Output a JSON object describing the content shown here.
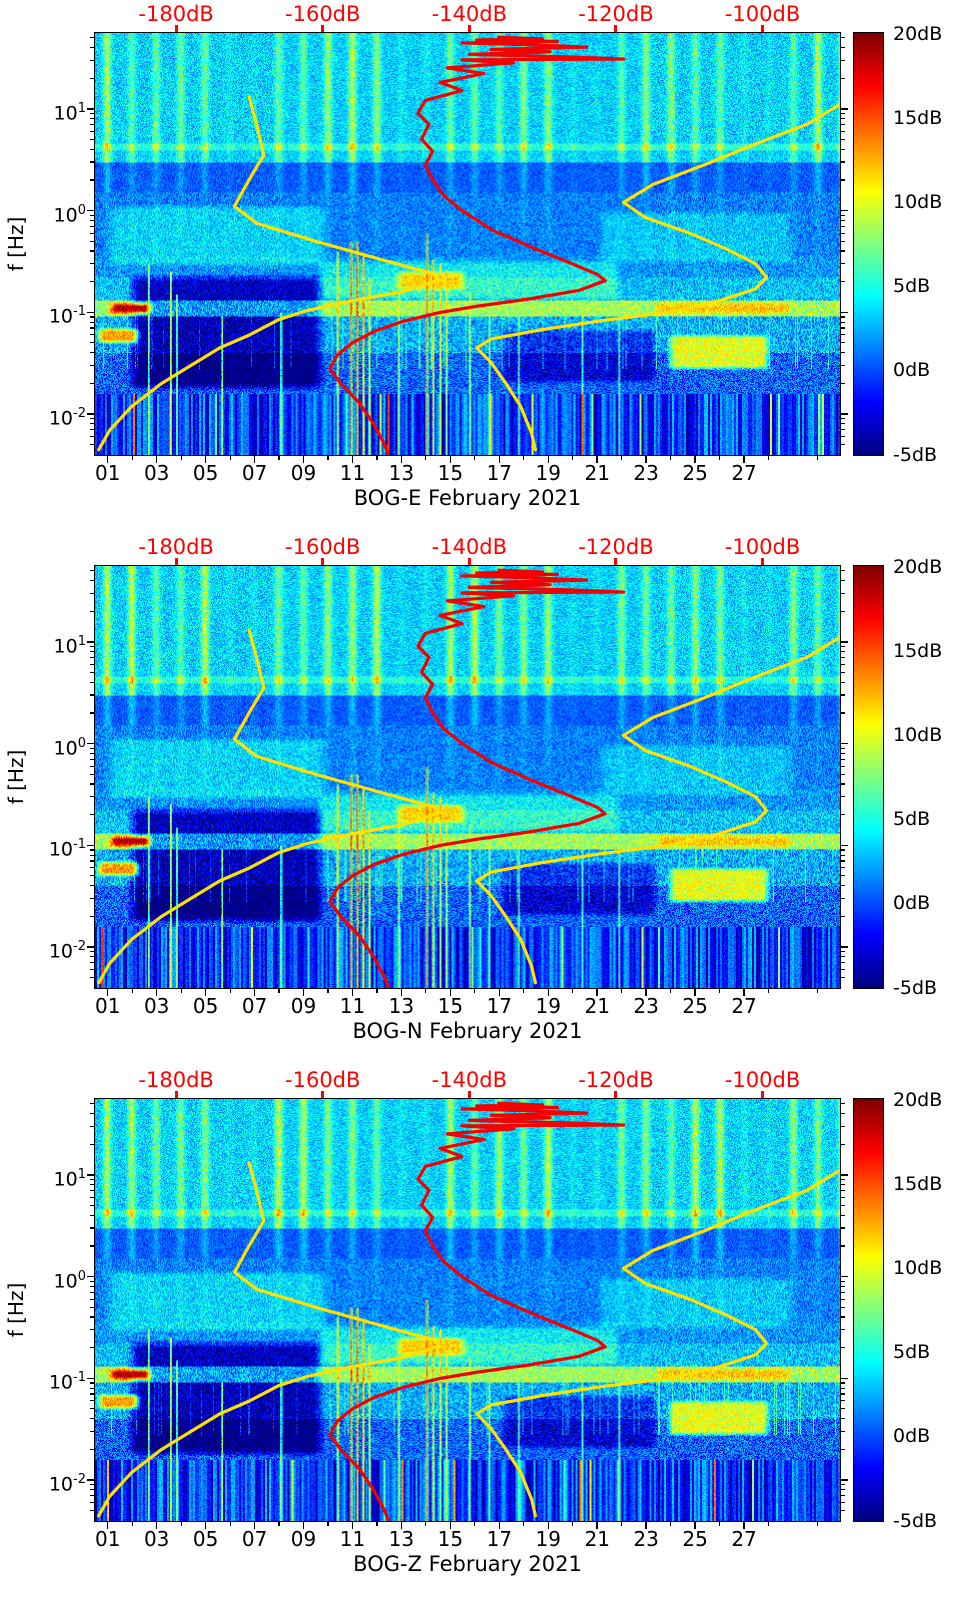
{
  "figure": {
    "kind": "seismic PSD spectrogram figure",
    "panel_count": 3
  },
  "chart_data": {
    "type": "heatmap",
    "panels": [
      {
        "title": "BOG-E February 2021",
        "seed": 1
      },
      {
        "title": "BOG-N February 2021",
        "seed": 2
      },
      {
        "title": "BOG-Z February 2021",
        "seed": 3
      }
    ],
    "y_axis": {
      "label": "f [Hz]",
      "scale": "log",
      "min": 0.004,
      "max": 55,
      "major_ticks": [
        {
          "value": 10,
          "base": "10",
          "exp": "1"
        },
        {
          "value": 1,
          "base": "10",
          "exp": "0"
        },
        {
          "value": 0.1,
          "base": "10",
          "exp": "-1"
        },
        {
          "value": 0.01,
          "base": "10",
          "exp": "-2"
        }
      ]
    },
    "x_axis": {
      "range_days": [
        0,
        30.4
      ],
      "tick_days": [
        0.5,
        2.5,
        4.5,
        6.5,
        8.5,
        10.5,
        12.5,
        14.5,
        16.5,
        18.5,
        20.5,
        22.5,
        24.5,
        26.5
      ],
      "tick_labels": [
        "01",
        "03",
        "05",
        "07",
        "09",
        "11",
        "13",
        "15",
        "17",
        "19",
        "21",
        "23",
        "25",
        "27"
      ],
      "minor_tick_days": [
        1.5,
        3.5,
        5.5,
        7.5,
        9.5,
        11.5,
        13.5,
        15.5,
        17.5,
        19.5,
        21.5,
        23.5,
        25.5,
        27.5,
        29.5
      ]
    },
    "top_axis": {
      "color": "#ff0000",
      "range_db": [
        -191,
        -89.5
      ],
      "ticks": [
        {
          "db": -180,
          "label": "-180dB"
        },
        {
          "db": -160,
          "label": "-160dB"
        },
        {
          "db": -140,
          "label": "-140dB"
        },
        {
          "db": -120,
          "label": "-120dB"
        },
        {
          "db": -100,
          "label": "-100dB"
        }
      ]
    },
    "colorbar": {
      "colormap": "jet",
      "min_db": -5,
      "max_db": 20,
      "ticks": [
        {
          "value": 20,
          "label": "20dB"
        },
        {
          "value": 15,
          "label": "15dB"
        },
        {
          "value": 10,
          "label": "10dB"
        },
        {
          "value": 5,
          "label": "5dB"
        },
        {
          "value": 0,
          "label": "0dB"
        },
        {
          "value": -5,
          "label": "-5dB"
        }
      ]
    },
    "overlays": [
      {
        "name": "low-noise-model",
        "color": "#ffe100",
        "width": 3.2,
        "points_db_hz": [
          [
            -170,
            13
          ],
          [
            -169,
            7
          ],
          [
            -168,
            3.5
          ],
          [
            -170,
            2
          ],
          [
            -172,
            1.1
          ],
          [
            -169,
            0.75
          ],
          [
            -161,
            0.5
          ],
          [
            -152,
            0.33
          ],
          [
            -145,
            0.24
          ],
          [
            -144,
            0.21
          ],
          [
            -149,
            0.16
          ],
          [
            -156,
            0.13
          ],
          [
            -162,
            0.105
          ],
          [
            -166,
            0.085
          ],
          [
            -170,
            0.06
          ],
          [
            -174,
            0.045
          ],
          [
            -178,
            0.03
          ],
          [
            -182,
            0.02
          ],
          [
            -186,
            0.012
          ],
          [
            -189,
            0.007
          ],
          [
            -190.5,
            0.0045
          ]
        ]
      },
      {
        "name": "high-noise-model",
        "color": "#ffe100",
        "width": 3.2,
        "points_db_hz": [
          [
            -89.5,
            11
          ],
          [
            -94,
            7
          ],
          [
            -101,
            4.5
          ],
          [
            -108,
            2.8
          ],
          [
            -115,
            1.8
          ],
          [
            -119,
            1.2
          ],
          [
            -116,
            0.85
          ],
          [
            -110,
            0.6
          ],
          [
            -105,
            0.42
          ],
          [
            -101,
            0.3
          ],
          [
            -99.5,
            0.22
          ],
          [
            -101,
            0.17
          ],
          [
            -106,
            0.13
          ],
          [
            -113,
            0.1
          ],
          [
            -122,
            0.083
          ],
          [
            -130,
            0.068
          ],
          [
            -137,
            0.055
          ],
          [
            -139,
            0.045
          ],
          [
            -137,
            0.032
          ],
          [
            -135,
            0.02
          ],
          [
            -133,
            0.012
          ],
          [
            -131.5,
            0.0065
          ],
          [
            -131,
            0.0045
          ]
        ]
      },
      {
        "name": "psd-mode",
        "color": "#f40000",
        "width": 3.2,
        "points_db_hz": [
          [
            -136,
            50
          ],
          [
            -130,
            48
          ],
          [
            -139,
            47
          ],
          [
            -128,
            45.5
          ],
          [
            -141,
            44
          ],
          [
            -131,
            42
          ],
          [
            -124,
            40
          ],
          [
            -137,
            38
          ],
          [
            -129,
            36
          ],
          [
            -140,
            34
          ],
          [
            -126,
            32
          ],
          [
            -119,
            30.5
          ],
          [
            -141,
            30
          ],
          [
            -134,
            28
          ],
          [
            -143,
            25
          ],
          [
            -138,
            22
          ],
          [
            -144,
            18
          ],
          [
            -141,
            15
          ],
          [
            -146,
            12
          ],
          [
            -147,
            9
          ],
          [
            -145.5,
            7
          ],
          [
            -146.5,
            5
          ],
          [
            -145,
            3.8
          ],
          [
            -146,
            2.8
          ],
          [
            -145,
            2
          ],
          [
            -143.5,
            1.4
          ],
          [
            -141,
            1
          ],
          [
            -137,
            0.65
          ],
          [
            -131,
            0.42
          ],
          [
            -126,
            0.3
          ],
          [
            -122.5,
            0.235
          ],
          [
            -121.5,
            0.205
          ],
          [
            -125,
            0.165
          ],
          [
            -132,
            0.135
          ],
          [
            -139,
            0.115
          ],
          [
            -144,
            0.1
          ],
          [
            -149,
            0.082
          ],
          [
            -153,
            0.065
          ],
          [
            -156,
            0.05
          ],
          [
            -158,
            0.038
          ],
          [
            -159,
            0.028
          ],
          [
            -157.5,
            0.02
          ],
          [
            -155,
            0.013
          ],
          [
            -153,
            0.008
          ],
          [
            -151.5,
            0.005
          ],
          [
            -151,
            0.004
          ]
        ]
      }
    ],
    "background": {
      "color_range_db": [
        -5,
        20
      ],
      "bands": [
        {
          "fmin": 3,
          "fmax": 55,
          "base": 3.2,
          "noise": 2.2,
          "stripe": 4.5
        },
        {
          "fmin": 1.5,
          "fmax": 3,
          "base": 0.3,
          "noise": 1.6,
          "stripe": 2.0
        },
        {
          "fmin": 0.35,
          "fmax": 1.5,
          "base": 1.2,
          "noise": 2.4,
          "stripe": 0.6
        },
        {
          "fmin": 0.22,
          "fmax": 0.35,
          "base": 1.8,
          "noise": 2.6,
          "stripe": 0
        },
        {
          "fmin": 0.13,
          "fmax": 0.22,
          "base": 3.0,
          "noise": 3.0,
          "stripe": 0
        },
        {
          "fmin": 0.09,
          "fmax": 0.13,
          "base": 8.5,
          "noise": 3.5,
          "stripe": 0
        },
        {
          "fmin": 0.04,
          "fmax": 0.09,
          "base": 2.5,
          "noise": 3.5,
          "stripe": 0
        },
        {
          "fmin": 0.016,
          "fmax": 0.04,
          "base": 0.5,
          "noise": 3.0,
          "stripe": 0
        },
        {
          "fmin": 0.004,
          "fmax": 0.016,
          "base": -0.5,
          "noise": 2.5,
          "stripe": 0
        }
      ],
      "hline": {
        "fmin": 3.9,
        "fmax": 4.6,
        "boost": 3.5
      },
      "weekend_day_indices": [
        5,
        6,
        12,
        13,
        19,
        20,
        26,
        27
      ],
      "quiet_region": {
        "day": [
          1.3,
          9.4
        ],
        "f": [
          0.017,
          0.24
        ],
        "delta": -6.5
      },
      "features": [
        {
          "day": [
            0.5,
            2.4
          ],
          "f": [
            0.093,
            0.128
          ],
          "db": 19
        },
        {
          "day": [
            0.0,
            1.9
          ],
          "f": [
            0.048,
            0.072
          ],
          "db": 13
        },
        {
          "day": [
            22.8,
            28.5
          ],
          "f": [
            0.092,
            0.13
          ],
          "db": 12
        },
        {
          "day": [
            23.3,
            27.6
          ],
          "f": [
            0.027,
            0.062
          ],
          "db": 10
        },
        {
          "day": [
            12.2,
            15.2
          ],
          "f": [
            0.16,
            0.26
          ],
          "db": 9
        },
        {
          "day": [
            9.0,
            21.5
          ],
          "f": [
            0.13,
            0.33
          ],
          "delta": 2.5
        },
        {
          "day": [
            0.5,
            9.5
          ],
          "f": [
            0.28,
            1.15
          ],
          "delta": 2.2
        },
        {
          "day": [
            20.5,
            28.5
          ],
          "f": [
            0.3,
            1.0
          ],
          "delta": 1.8
        },
        {
          "day": [
            16.5,
            23.0
          ],
          "f": [
            0.02,
            0.07
          ],
          "delta": -3.5
        }
      ],
      "transients": [
        {
          "day": 2.2,
          "fmax": 0.3,
          "db": 10
        },
        {
          "day": 3.1,
          "fmax": 0.25,
          "db": 12
        },
        {
          "day": 3.35,
          "fmax": 0.15,
          "db": 10
        },
        {
          "day": 5.2,
          "fmax": 0.09,
          "db": 9
        },
        {
          "day": 7.6,
          "fmax": 0.1,
          "db": 9
        },
        {
          "day": 9.9,
          "fmax": 0.4,
          "db": 13
        },
        {
          "day": 10.45,
          "fmax": 0.5,
          "db": 17
        },
        {
          "day": 10.7,
          "fmax": 0.5,
          "db": 18
        },
        {
          "day": 10.95,
          "fmax": 0.38,
          "db": 16
        },
        {
          "day": 11.2,
          "fmax": 0.22,
          "db": 13
        },
        {
          "day": 12.4,
          "fmax": 0.2,
          "db": 10
        },
        {
          "day": 13.55,
          "fmax": 0.6,
          "db": 15
        },
        {
          "day": 13.8,
          "fmax": 0.33,
          "db": 14
        },
        {
          "day": 14.1,
          "fmax": 0.3,
          "db": 13
        },
        {
          "day": 14.35,
          "fmax": 0.26,
          "db": 12
        },
        {
          "day": 15.3,
          "fmax": 0.16,
          "db": 10
        },
        {
          "day": 16.1,
          "fmax": 0.12,
          "db": 9
        },
        {
          "day": 17.3,
          "fmax": 0.1,
          "db": 8
        },
        {
          "day": 19.9,
          "fmax": 0.12,
          "db": 9
        },
        {
          "day": 21.4,
          "fmax": 0.09,
          "db": 8
        }
      ],
      "lowfreq_bar_fmax": 0.016,
      "lowfreq_bar_amp": 3.5
    }
  }
}
